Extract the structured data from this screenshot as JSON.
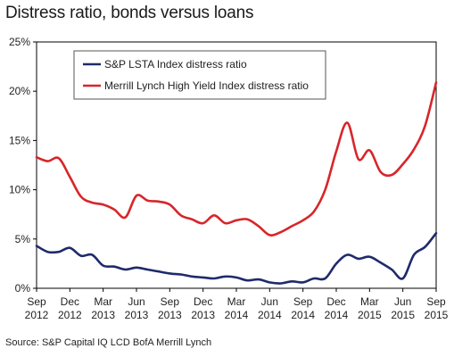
{
  "chart_data": {
    "type": "line",
    "title": "Distress ratio, bonds versus loans",
    "source": "Source: S&P Capital IQ LCD BofA Merrill Lynch",
    "x_ticks": [
      {
        "line1": "Sep",
        "line2": "2012"
      },
      {
        "line1": "Dec",
        "line2": "2012"
      },
      {
        "line1": "Mar",
        "line2": "2013"
      },
      {
        "line1": "Jun",
        "line2": "2013"
      },
      {
        "line1": "Sep",
        "line2": "2013"
      },
      {
        "line1": "Dec",
        "line2": "2013"
      },
      {
        "line1": "Mar",
        "line2": "2014"
      },
      {
        "line1": "Jun",
        "line2": "2014"
      },
      {
        "line1": "Sep",
        "line2": "2014"
      },
      {
        "line1": "Dec",
        "line2": "2014"
      },
      {
        "line1": "Mar",
        "line2": "2015"
      },
      {
        "line1": "Jun",
        "line2": "2015"
      },
      {
        "line1": "Sep",
        "line2": "2015"
      }
    ],
    "y_ticks": [
      "0%",
      "5%",
      "10%",
      "15%",
      "20%",
      "25%"
    ],
    "ylim": [
      0,
      25
    ],
    "xlim": [
      "Sep 2012",
      "Sep 2015"
    ],
    "legend_position": "top-left",
    "grid": false,
    "series": [
      {
        "name": "S&P LSTA Index distress ratio",
        "color": "#1f2a6b",
        "points": [
          [
            "2012-09",
            4.3
          ],
          [
            "2012-10",
            3.7
          ],
          [
            "2012-11",
            3.7
          ],
          [
            "2012-12",
            4.1
          ],
          [
            "2013-01",
            3.3
          ],
          [
            "2013-02",
            3.4
          ],
          [
            "2013-03",
            2.3
          ],
          [
            "2013-04",
            2.2
          ],
          [
            "2013-05",
            1.9
          ],
          [
            "2013-06",
            2.1
          ],
          [
            "2013-07",
            1.9
          ],
          [
            "2013-08",
            1.7
          ],
          [
            "2013-09",
            1.5
          ],
          [
            "2013-10",
            1.4
          ],
          [
            "2013-11",
            1.2
          ],
          [
            "2013-12",
            1.1
          ],
          [
            "2014-01",
            1.0
          ],
          [
            "2014-02",
            1.2
          ],
          [
            "2014-03",
            1.1
          ],
          [
            "2014-04",
            0.8
          ],
          [
            "2014-05",
            0.9
          ],
          [
            "2014-06",
            0.6
          ],
          [
            "2014-07",
            0.5
          ],
          [
            "2014-08",
            0.7
          ],
          [
            "2014-09",
            0.6
          ],
          [
            "2014-10",
            1.0
          ],
          [
            "2014-11",
            1.0
          ],
          [
            "2014-12",
            2.5
          ],
          [
            "2015-01",
            3.4
          ],
          [
            "2015-02",
            3.0
          ],
          [
            "2015-03",
            3.2
          ],
          [
            "2015-04",
            2.6
          ],
          [
            "2015-05",
            1.9
          ],
          [
            "2015-06",
            1.0
          ],
          [
            "2015-07",
            3.4
          ],
          [
            "2015-08",
            4.2
          ],
          [
            "2015-09",
            5.6
          ]
        ]
      },
      {
        "name": "Merrill Lynch High Yield Index distress ratio",
        "color": "#d7262b",
        "points": [
          [
            "2012-09",
            13.3
          ],
          [
            "2012-10",
            12.9
          ],
          [
            "2012-11",
            13.2
          ],
          [
            "2012-12",
            11.3
          ],
          [
            "2013-01",
            9.3
          ],
          [
            "2013-02",
            8.7
          ],
          [
            "2013-03",
            8.5
          ],
          [
            "2013-04",
            8.0
          ],
          [
            "2013-05",
            7.2
          ],
          [
            "2013-06",
            9.4
          ],
          [
            "2013-07",
            8.9
          ],
          [
            "2013-08",
            8.8
          ],
          [
            "2013-09",
            8.5
          ],
          [
            "2013-10",
            7.4
          ],
          [
            "2013-11",
            7.0
          ],
          [
            "2013-12",
            6.6
          ],
          [
            "2014-01",
            7.4
          ],
          [
            "2014-02",
            6.6
          ],
          [
            "2014-03",
            6.9
          ],
          [
            "2014-04",
            7.0
          ],
          [
            "2014-05",
            6.3
          ],
          [
            "2014-06",
            5.4
          ],
          [
            "2014-07",
            5.7
          ],
          [
            "2014-08",
            6.3
          ],
          [
            "2014-09",
            6.9
          ],
          [
            "2014-10",
            7.8
          ],
          [
            "2014-11",
            10.0
          ],
          [
            "2014-12",
            13.9
          ],
          [
            "2015-01",
            16.8
          ],
          [
            "2015-02",
            13.1
          ],
          [
            "2015-03",
            14.0
          ],
          [
            "2015-04",
            11.8
          ],
          [
            "2015-05",
            11.5
          ],
          [
            "2015-06",
            12.6
          ],
          [
            "2015-07",
            14.1
          ],
          [
            "2015-08",
            16.5
          ],
          [
            "2015-09",
            20.9
          ]
        ]
      }
    ]
  }
}
